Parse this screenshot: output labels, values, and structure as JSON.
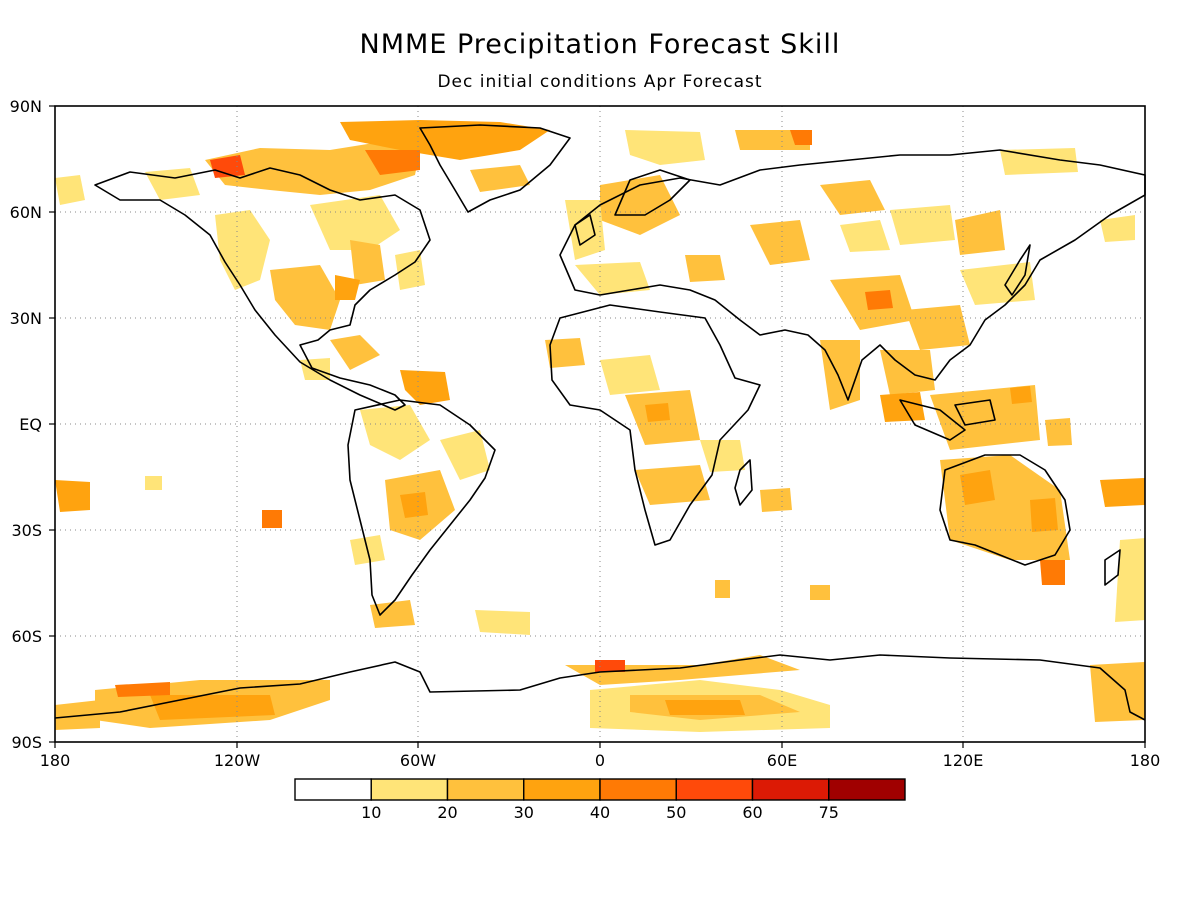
{
  "title": "NMME Precipitation Forecast Skill",
  "subtitle": "Dec initial conditions  Apr Forecast",
  "lat_ticks": [
    "90N",
    "60N",
    "30N",
    "EQ",
    "30S",
    "60S",
    "90S"
  ],
  "lon_ticks": [
    "180",
    "120W",
    "60W",
    "0",
    "60E",
    "120E",
    "180"
  ],
  "colorbar": {
    "labels": [
      "10",
      "20",
      "30",
      "40",
      "50",
      "60",
      "75"
    ],
    "colors": [
      "#ffffff",
      "#ffe478",
      "#ffc13d",
      "#ffa30f",
      "#ff7a05",
      "#ff4a0a",
      "#dc1a05",
      "#a00000"
    ]
  },
  "land_color": "#000000",
  "grid": true
}
